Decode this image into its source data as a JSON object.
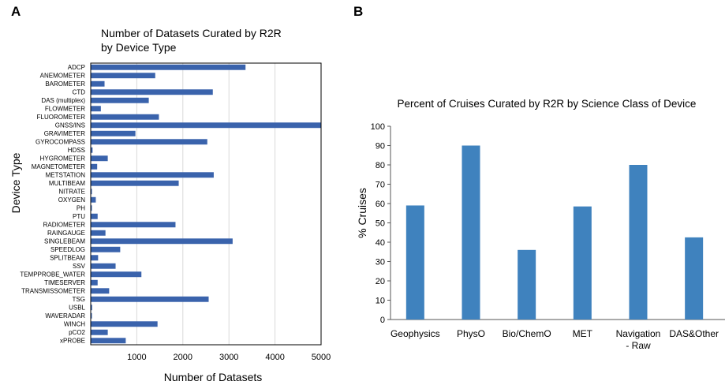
{
  "panel_a_letter": "A",
  "panel_b_letter": "B",
  "chart_data": [
    {
      "type": "bar",
      "orientation": "horizontal",
      "title": "Number of Datasets Curated by R2R by Device Type",
      "title_lines": [
        "Number of Datasets Curated by R2R",
        "by Device Type"
      ],
      "xlabel": "Number of Datasets",
      "ylabel": "Device Type",
      "xlim": [
        0,
        5000
      ],
      "xticks": [
        "1000",
        "2000",
        "3000",
        "4000",
        "5000"
      ],
      "grid": true,
      "bar_color": "#3a63ac",
      "categories": [
        "ADCP",
        "ANEMOMETER",
        "BAROMETER",
        "CTD",
        "DAS (multiplex)",
        "FLOWMETER",
        "FLUOROMETER",
        "GNSS/INS",
        "GRAVIMETER",
        "GYROCOMPASS",
        "HDSS",
        "HYGROMETER",
        "MAGNETOMETER",
        "METSTATION",
        "MULTIBEAM",
        "NITRATE",
        "OXYGEN",
        "PH",
        "PTU",
        "RADIOMETER",
        "RAINGAUGE",
        "SINGLEBEAM",
        "SPEEDLOG",
        "SPLITBEAM",
        "SSV",
        "TEMPPROBE_WATER",
        "TIMESERVER",
        "TRANSMISSOMETER",
        "TSG",
        "USBL",
        "WAVERADAR",
        "WINCH",
        "pCO2",
        "xPROBE"
      ],
      "values": [
        3360,
        1400,
        300,
        2650,
        1260,
        220,
        1480,
        5000,
        970,
        2530,
        40,
        370,
        140,
        2670,
        1910,
        20,
        110,
        20,
        150,
        1840,
        320,
        3080,
        640,
        160,
        540,
        1100,
        150,
        400,
        2560,
        30,
        20,
        1450,
        370,
        760
      ]
    },
    {
      "type": "bar",
      "title": "Percent of Cruises Curated by R2R by Science Class of Device",
      "xlabel": "",
      "ylabel": "% Cruises",
      "ylim": [
        0,
        100
      ],
      "yticks": [
        "0",
        "10",
        "20",
        "30",
        "40",
        "50",
        "60",
        "70",
        "80",
        "90",
        "100"
      ],
      "grid": false,
      "bar_color": "#3f82be",
      "categories": [
        "Geophysics",
        "PhysO",
        "Bio/ChemO",
        "MET",
        "Navigation - Raw",
        "DAS&Other"
      ],
      "category_lines": [
        [
          "Geophysics"
        ],
        [
          "PhysO"
        ],
        [
          "Bio/ChemO"
        ],
        [
          "MET"
        ],
        [
          "Navigation",
          "- Raw"
        ],
        [
          "DAS&Other"
        ]
      ],
      "values": [
        59,
        90,
        36,
        58.5,
        80,
        42.5
      ]
    }
  ]
}
